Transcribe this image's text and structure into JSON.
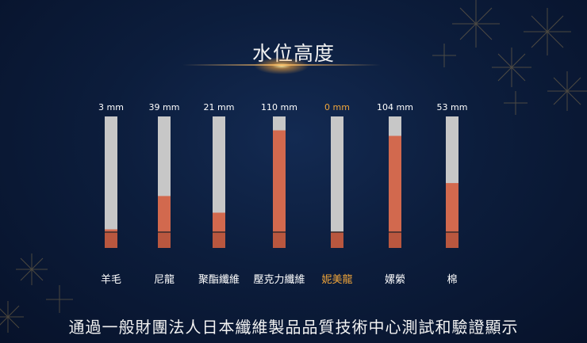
{
  "title": "水位高度",
  "footer": "通過一般財團法人日本纖維製品品質技術中心測試和驗證顯示",
  "colors": {
    "tube": "#c7c7c7",
    "water": "#d2694e",
    "water_dark": "#b9573f",
    "label": "#ffffff",
    "highlight": "#f0a53a",
    "background": "#0c1d3c"
  },
  "chart_data": {
    "type": "bar",
    "categories": [
      "羊毛",
      "尼龍",
      "聚酯纖維",
      "壓克力纖維",
      "妮美龍",
      "嫘縈",
      "棉"
    ],
    "values": [
      3,
      39,
      21,
      110,
      0,
      104,
      53
    ],
    "value_labels": [
      "3 mm",
      "39 mm",
      "21 mm",
      "110 mm",
      "0 mm",
      "104 mm",
      "53 mm"
    ],
    "unit": "mm",
    "highlight_category": "妮美龍",
    "ylim": [
      0,
      125
    ],
    "title": "水位高度",
    "xlabel": "",
    "ylabel": "",
    "grid": false,
    "legend": "none"
  }
}
